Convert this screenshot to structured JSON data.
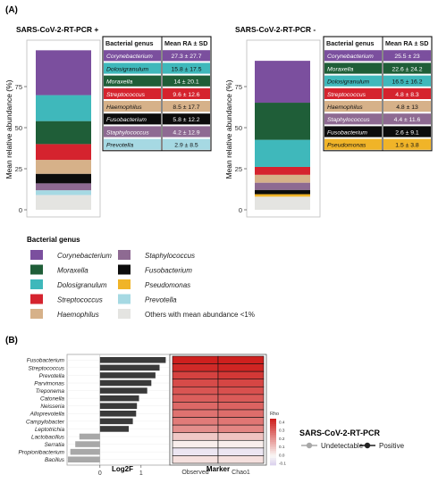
{
  "panel_a_label": "(A)",
  "panel_b_label": "(B)",
  "colors": {
    "Corynebacterium": "#7b4f9e",
    "Moraxella": "#1f5e38",
    "Dolosigranulum": "#3fb8bb",
    "Streptococcus": "#d5232e",
    "Haemophilus": "#d6b189",
    "Staphylococcus": "#8e6a92",
    "Fusobacterium": "#0c0c0c",
    "Pseudomonas": "#f0b428",
    "Prevotella": "#a6d9e3",
    "Others": "#e4e4e1",
    "bar_b": "#3a3a3a",
    "bar_b_neg": "#a8a8a8"
  },
  "chart_data": [
    {
      "type": "bar",
      "title": "SARS-CoV-2-RT-PCR +",
      "ylabel": "Mean relative abundance (%)",
      "ylim": [
        0,
        100
      ],
      "yticks": [
        0,
        25,
        50,
        75
      ],
      "stack_bottom_to_top": [
        "Others",
        "Prevotella",
        "Staphylococcus",
        "Fusobacterium",
        "Haemophilus",
        "Streptococcus",
        "Moraxella",
        "Dolosigranulum",
        "Corynebacterium"
      ],
      "values": [
        9,
        2.9,
        4.2,
        5.8,
        8.5,
        9.6,
        14,
        15.8,
        27.3
      ],
      "table": {
        "headers": [
          "Bacterial genus",
          "Mean RA ± SD"
        ],
        "rows": [
          {
            "genus": "Corynebacterium",
            "value": "27.3 ± 27.7"
          },
          {
            "genus": "Dolosigranulum",
            "value": "15.8 ± 17.5"
          },
          {
            "genus": "Moraxella",
            "value": "14 ± 20.1"
          },
          {
            "genus": "Streptococcus",
            "value": "9.6 ± 12.6"
          },
          {
            "genus": "Haemophilus",
            "value": "8.5 ± 17.7"
          },
          {
            "genus": "Fusobacterium",
            "value": "5.8 ± 12.2"
          },
          {
            "genus": "Staphylococcus",
            "value": "4.2 ± 12.9"
          },
          {
            "genus": "Prevotella",
            "value": "2.9 ± 8.5"
          }
        ]
      }
    },
    {
      "type": "bar",
      "title": "SARS-CoV-2-RT-PCR -",
      "ylabel": "Mean relative abundance (%)",
      "ylim": [
        0,
        100
      ],
      "yticks": [
        0,
        25,
        50,
        75
      ],
      "stack_bottom_to_top": [
        "Others",
        "Pseudomonas",
        "Fusobacterium",
        "Staphylococcus",
        "Haemophilus",
        "Streptococcus",
        "Dolosigranulum",
        "Moraxella",
        "Corynebacterium"
      ],
      "values": [
        8,
        1.5,
        2.6,
        4.4,
        4.8,
        4.8,
        16.5,
        22.6,
        25.5
      ],
      "table": {
        "headers": [
          "Bacterial genus",
          "Mean RA ± SD"
        ],
        "rows": [
          {
            "genus": "Corynebacterium",
            "value": "25.5 ± 23"
          },
          {
            "genus": "Moraxella",
            "value": "22.6 ± 24.2"
          },
          {
            "genus": "Dolosigranulum",
            "value": "16.5 ± 16.2"
          },
          {
            "genus": "Streptococcus",
            "value": "4.8 ± 8.3"
          },
          {
            "genus": "Haemophilus",
            "value": "4.8 ± 13"
          },
          {
            "genus": "Staphylococcus",
            "value": "4.4 ± 11.6"
          },
          {
            "genus": "Fusobacterium",
            "value": "2.6 ± 9.1"
          },
          {
            "genus": "Pseudomonas",
            "value": "1.5 ± 3.8"
          }
        ]
      }
    },
    {
      "type": "bar",
      "orientation": "horizontal",
      "xlabel": "Log2F",
      "xlim": [
        -0.8,
        1.7
      ],
      "xticks": [
        0,
        1
      ],
      "categories": [
        "Fusobacterium",
        "Streptococcus",
        "Prevotella",
        "Parvimonas",
        "Treponema",
        "Catonella",
        "Neisseria",
        "Alloprevotella",
        "Campylobacter",
        "Leptotrichia",
        "Lactobacillus",
        "Serratia",
        "Propionibacterium",
        "Bacillus"
      ],
      "values": [
        1.6,
        1.45,
        1.35,
        1.25,
        1.15,
        0.95,
        0.9,
        0.88,
        0.8,
        0.7,
        -0.5,
        -0.6,
        -0.72,
        -0.78
      ],
      "series_legend_title": "SARS-CoV-2-RT-PCR",
      "series": [
        {
          "name": "Undetectable",
          "color": "#a8a8a8"
        },
        {
          "name": "Positive",
          "color": "#222222"
        }
      ]
    },
    {
      "type": "heatmap",
      "xlabel": "Marker",
      "columns": [
        "Observed",
        "Chao1"
      ],
      "rows": [
        "Fusobacterium",
        "Streptococcus",
        "Prevotella",
        "Parvimonas",
        "Treponema",
        "Catonella",
        "Neisseria",
        "Alloprevotella",
        "Campylobacter",
        "Leptotrichia",
        "Lactobacillus",
        "Serratia",
        "Propionibacterium",
        "Bacillus"
      ],
      "values": [
        [
          0.45,
          0.45
        ],
        [
          0.43,
          0.44
        ],
        [
          0.38,
          0.4
        ],
        [
          0.36,
          0.37
        ],
        [
          0.34,
          0.35
        ],
        [
          0.32,
          0.33
        ],
        [
          0.3,
          0.31
        ],
        [
          0.28,
          0.29
        ],
        [
          0.26,
          0.27
        ],
        [
          0.22,
          0.24
        ],
        [
          0.1,
          0.11
        ],
        [
          0.02,
          0.02
        ],
        [
          -0.05,
          -0.05
        ],
        [
          0.05,
          0.05
        ]
      ],
      "colorbar": {
        "title": "Rho",
        "ticks": [
          "0.4",
          "0.3",
          "0.2",
          "0.1",
          "0.0",
          "-0.1"
        ],
        "min": -0.1,
        "max": 0.45
      }
    }
  ],
  "legend_a": {
    "title": "Bacterial genus",
    "items": [
      {
        "key": "Corynebacterium",
        "label": "Corynebacterium",
        "italic": true
      },
      {
        "key": "Staphylococcus",
        "label": "Staphylococcus",
        "italic": true
      },
      {
        "key": "Moraxella",
        "label": "Moraxella",
        "italic": true
      },
      {
        "key": "Fusobacterium",
        "label": "Fusobacterium",
        "italic": true
      },
      {
        "key": "Dolosigranulum",
        "label": "Dolosigranulum",
        "italic": true
      },
      {
        "key": "Pseudomonas",
        "label": "Pseudomonas",
        "italic": true
      },
      {
        "key": "Streptococcus",
        "label": "Streptococcus",
        "italic": true
      },
      {
        "key": "Prevotella",
        "label": "Prevotella",
        "italic": true
      },
      {
        "key": "Haemophilus",
        "label": "Haemophilus",
        "italic": true
      },
      {
        "key": "Others",
        "label": "Others with mean abundance <1%",
        "italic": false
      }
    ]
  }
}
